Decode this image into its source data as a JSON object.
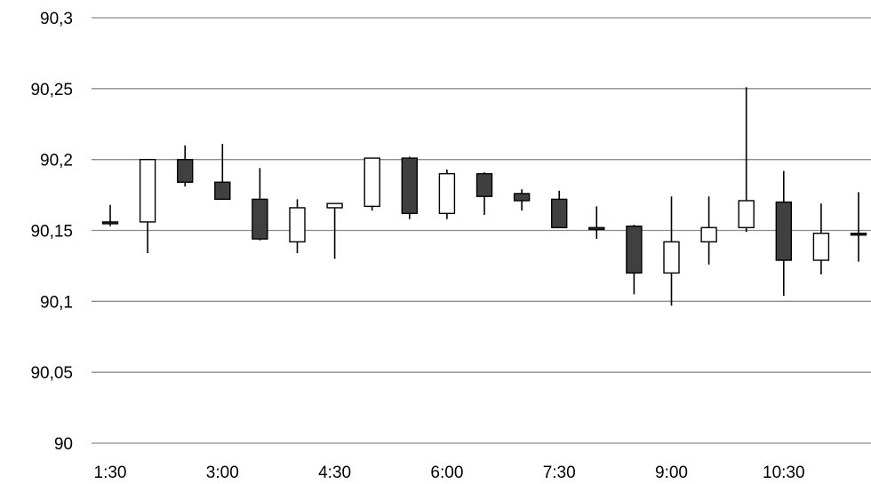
{
  "chart_data": {
    "type": "candlestick",
    "title": "",
    "xlabel": "",
    "ylabel": "",
    "ylim": [
      90,
      90.3
    ],
    "y_ticks": [
      90,
      90.05,
      90.1,
      90.15,
      90.2,
      90.25,
      90.3
    ],
    "y_tick_labels": [
      "90",
      "90,05",
      "90,1",
      "90,15",
      "90,2",
      "90,25",
      "90,3"
    ],
    "x_tick_labels": [
      {
        "index": 0,
        "label": "1:30"
      },
      {
        "index": 3,
        "label": "3:00"
      },
      {
        "index": 6,
        "label": "4:30"
      },
      {
        "index": 9,
        "label": "6:00"
      },
      {
        "index": 12,
        "label": "7:30"
      },
      {
        "index": 15,
        "label": "9:00"
      },
      {
        "index": 18,
        "label": "10:30"
      }
    ],
    "grid": true,
    "legend": "none",
    "colors": {
      "up_fill": "#ffffff",
      "down_fill": "#404040",
      "outline": "#000000",
      "grid": "#8c8c8c"
    },
    "candles": [
      {
        "open": 90.156,
        "high": 90.168,
        "low": 90.153,
        "close": 90.155
      },
      {
        "open": 90.156,
        "high": 90.2,
        "low": 90.134,
        "close": 90.2
      },
      {
        "open": 90.2,
        "high": 90.21,
        "low": 90.181,
        "close": 90.184
      },
      {
        "open": 90.184,
        "high": 90.211,
        "low": 90.172,
        "close": 90.172
      },
      {
        "open": 90.172,
        "high": 90.194,
        "low": 90.143,
        "close": 90.144
      },
      {
        "open": 90.142,
        "high": 90.172,
        "low": 90.134,
        "close": 90.166
      },
      {
        "open": 90.166,
        "high": 90.169,
        "low": 90.13,
        "close": 90.169
      },
      {
        "open": 90.167,
        "high": 90.201,
        "low": 90.164,
        "close": 90.201
      },
      {
        "open": 90.201,
        "high": 90.202,
        "low": 90.158,
        "close": 90.162
      },
      {
        "open": 90.162,
        "high": 90.193,
        "low": 90.158,
        "close": 90.19
      },
      {
        "open": 90.19,
        "high": 90.191,
        "low": 90.161,
        "close": 90.174
      },
      {
        "open": 90.176,
        "high": 90.179,
        "low": 90.164,
        "close": 90.171
      },
      {
        "open": 90.172,
        "high": 90.178,
        "low": 90.152,
        "close": 90.152
      },
      {
        "open": 90.152,
        "high": 90.167,
        "low": 90.144,
        "close": 90.151
      },
      {
        "open": 90.153,
        "high": 90.154,
        "low": 90.105,
        "close": 90.12
      },
      {
        "open": 90.12,
        "high": 90.174,
        "low": 90.097,
        "close": 90.142
      },
      {
        "open": 90.142,
        "high": 90.174,
        "low": 90.126,
        "close": 90.152
      },
      {
        "open": 90.152,
        "high": 90.251,
        "low": 90.149,
        "close": 90.171
      },
      {
        "open": 90.17,
        "high": 90.192,
        "low": 90.104,
        "close": 90.129
      },
      {
        "open": 90.129,
        "high": 90.169,
        "low": 90.119,
        "close": 90.148
      },
      {
        "open": 90.148,
        "high": 90.177,
        "low": 90.128,
        "close": 90.147
      }
    ]
  }
}
